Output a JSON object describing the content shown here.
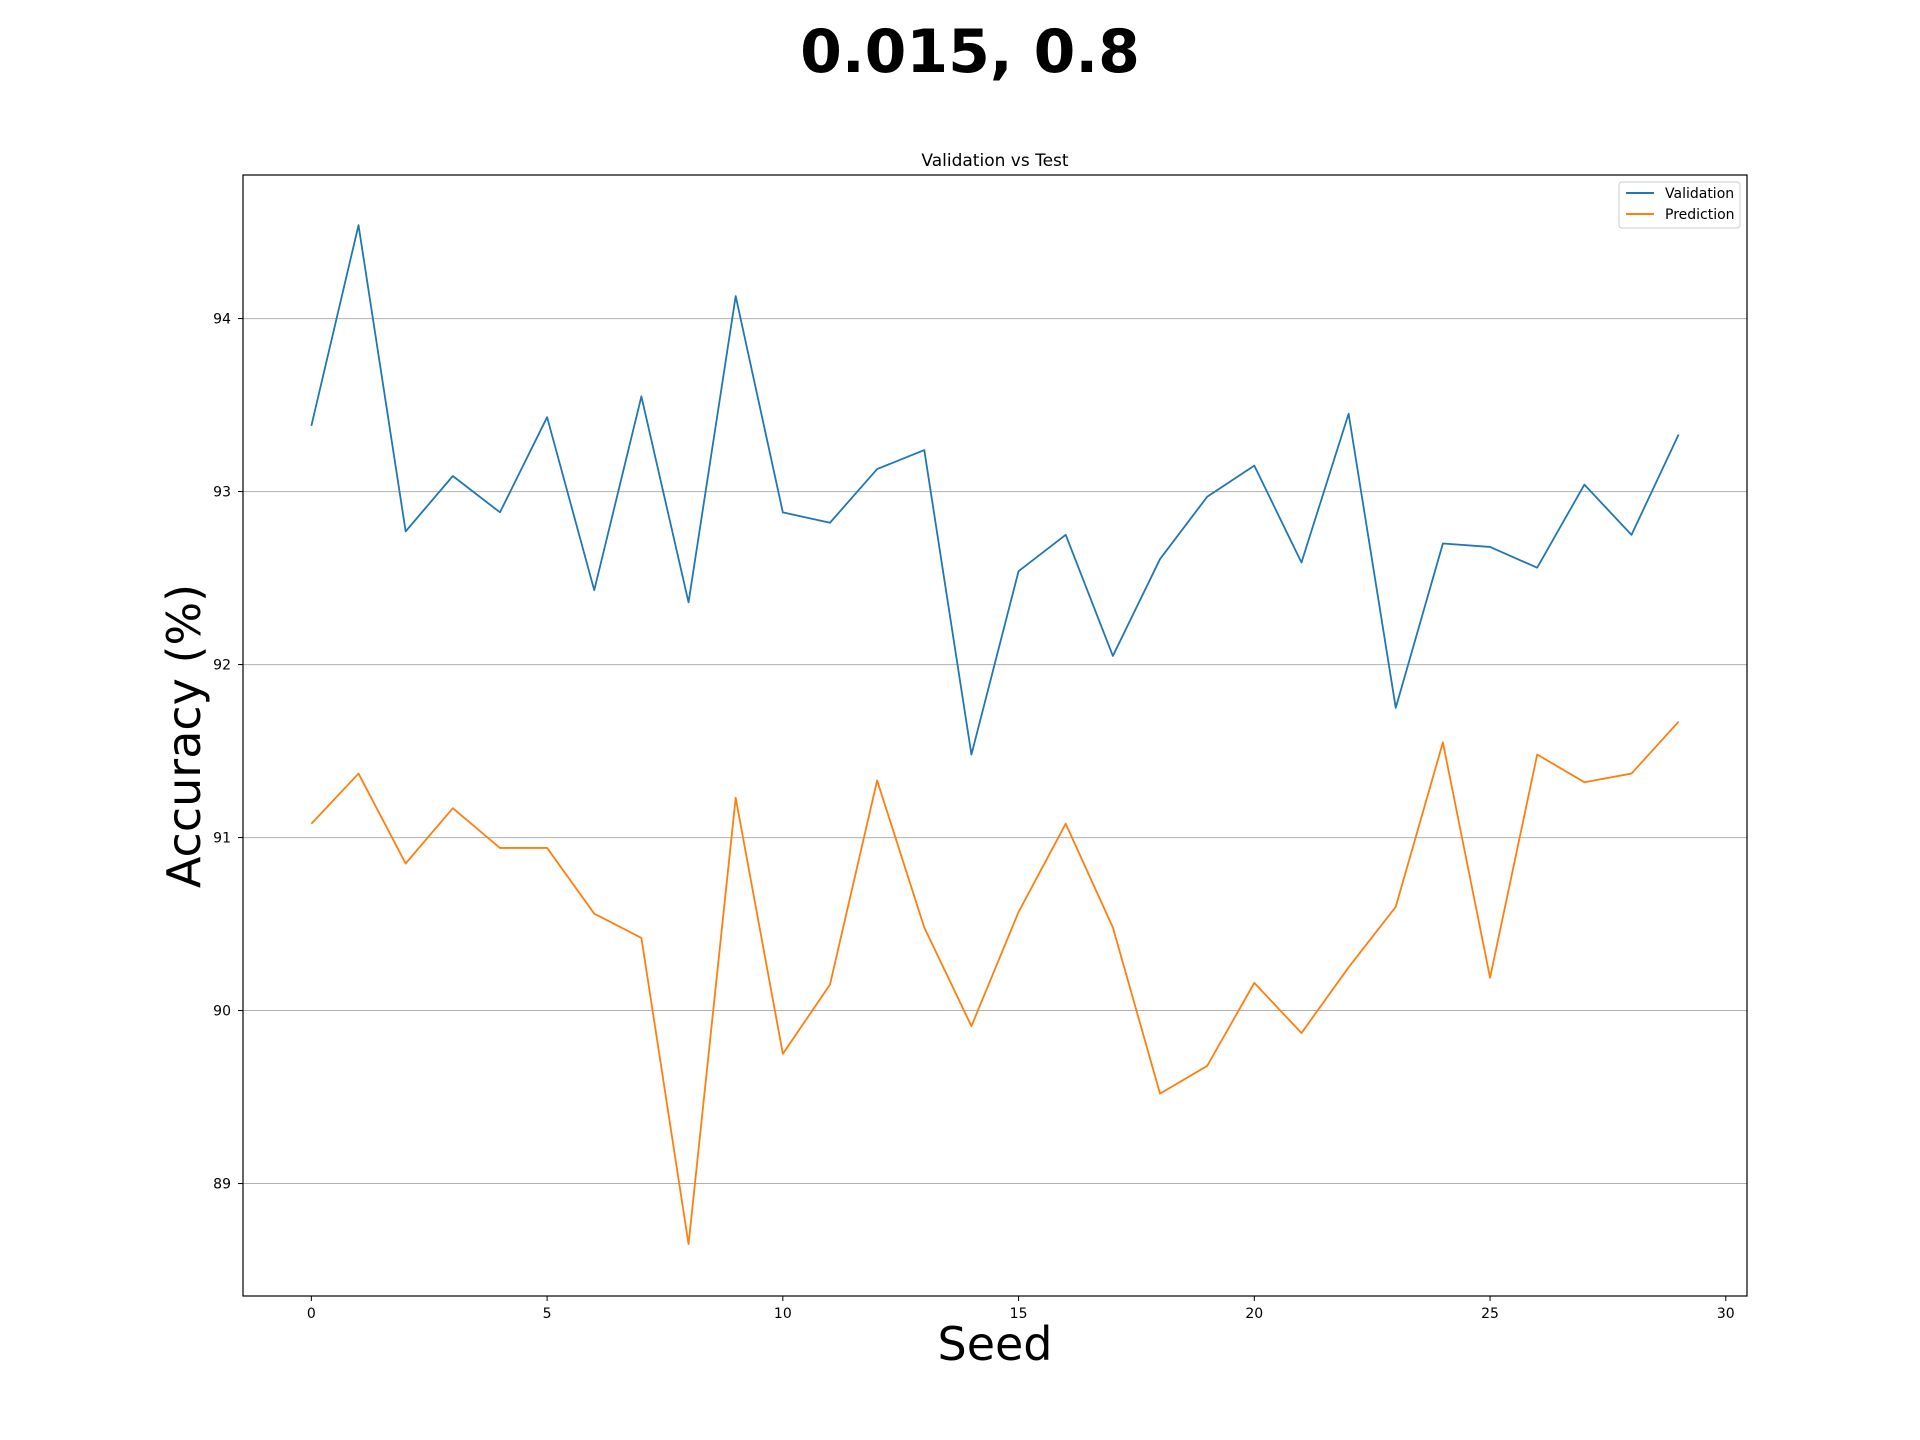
{
  "figure": {
    "suptitle": "0.015, 0.8"
  },
  "chart_data": {
    "type": "line",
    "title": "Validation vs Test",
    "xlabel": "Seed",
    "ylabel": "Accuracy (%)",
    "xlim": [
      -1.45,
      30.45
    ],
    "ylim": [
      88.35,
      94.83
    ],
    "xticks": [
      0,
      5,
      10,
      15,
      20,
      25,
      30
    ],
    "yticks": [
      89,
      90,
      91,
      92,
      93,
      94
    ],
    "grid": "horizontal",
    "legend_position": "top-right",
    "x": [
      0,
      1,
      2,
      3,
      4,
      5,
      6,
      7,
      8,
      9,
      10,
      11,
      12,
      13,
      14,
      15,
      16,
      17,
      18,
      19,
      20,
      21,
      22,
      23,
      24,
      25,
      26,
      27,
      28,
      29
    ],
    "series": [
      {
        "name": "Validation",
        "color": "#1f77b4",
        "values": [
          93.38,
          94.54,
          92.77,
          93.09,
          92.88,
          93.43,
          92.43,
          93.55,
          92.36,
          94.13,
          92.88,
          92.82,
          93.13,
          93.24,
          91.48,
          92.54,
          92.75,
          92.05,
          92.61,
          92.97,
          93.15,
          92.59,
          93.45,
          91.75,
          92.7,
          92.68,
          92.56,
          93.04,
          92.75,
          93.33
        ]
      },
      {
        "name": "Prediction",
        "color": "#ff7f0e",
        "values": [
          91.08,
          91.37,
          90.85,
          91.17,
          90.94,
          90.94,
          90.56,
          90.42,
          88.65,
          91.23,
          89.75,
          90.15,
          91.33,
          90.48,
          89.91,
          90.57,
          91.08,
          90.48,
          89.52,
          89.68,
          90.16,
          89.87,
          90.25,
          90.6,
          91.55,
          90.19,
          91.48,
          91.32,
          91.37,
          91.67
        ]
      }
    ]
  }
}
